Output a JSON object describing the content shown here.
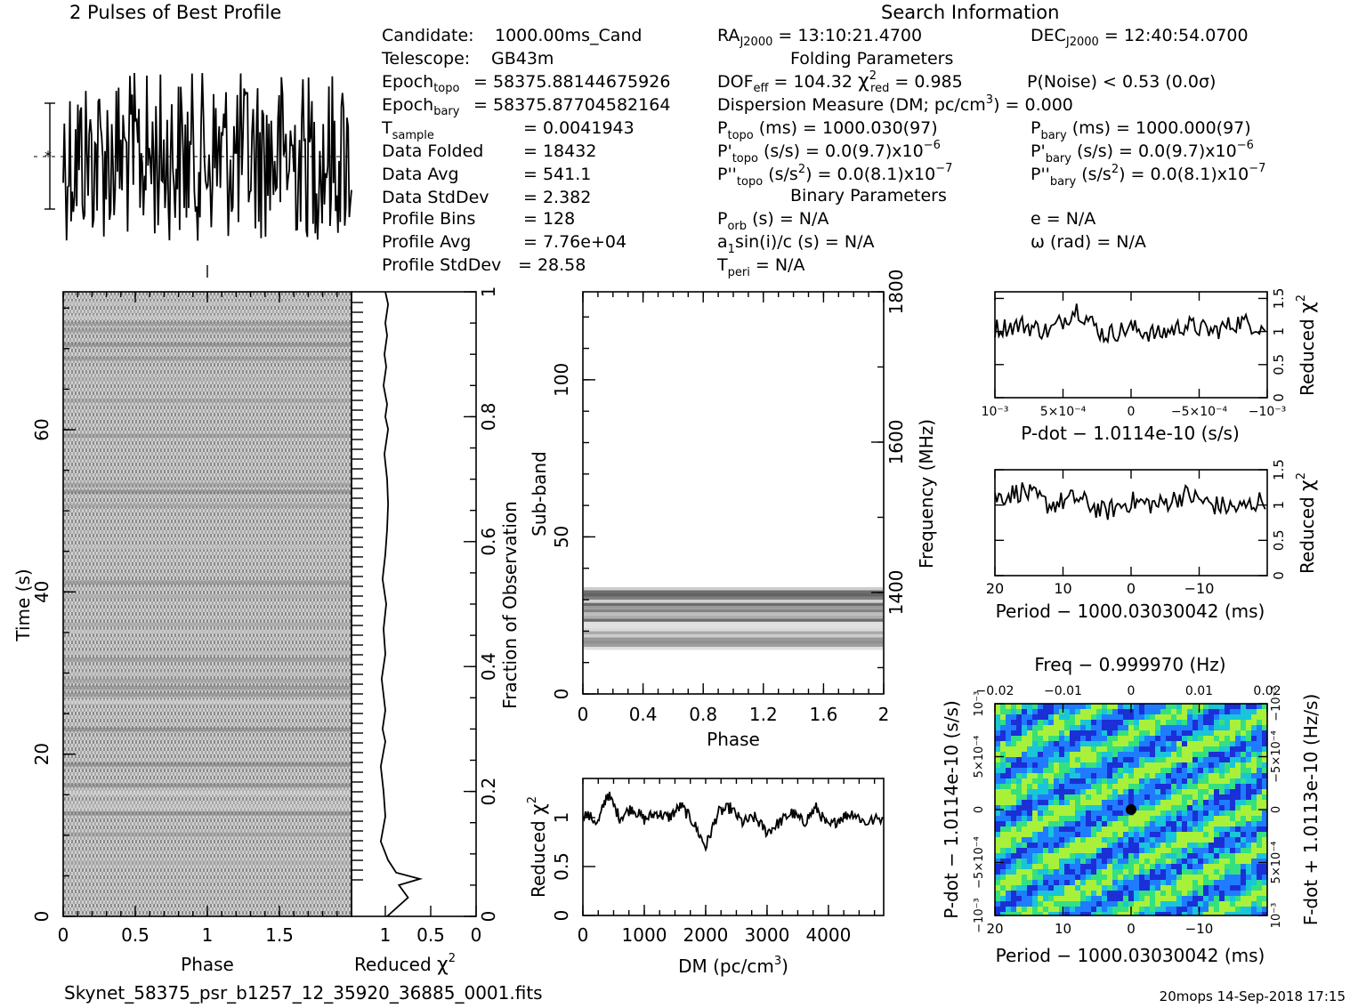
{
  "header": {
    "profile_title": "2 Pulses of Best Profile",
    "search_title": "Search Information",
    "folding_title": "Folding Parameters",
    "binary_title": "Binary Parameters",
    "filename": "Skynet_58375_psr_b1257_12_35920_36885_0001.fits",
    "footer_right": "20mops 14-Sep-2018 17:15"
  },
  "info_left": [
    {
      "label": "Candidate:",
      "value": "1000.00ms_Cand"
    },
    {
      "label": "Telescope:",
      "value": "GB43m"
    },
    {
      "label": "Epoch_topo",
      "value": "= 58375.88144675926"
    },
    {
      "label": "Epoch_bary",
      "value": "= 58375.87704582164"
    },
    {
      "label": "T_sample",
      "value": "=  0.0041943"
    },
    {
      "label": "Data Folded",
      "value": "=  18432"
    },
    {
      "label": "Data Avg",
      "value": "=  541.1"
    },
    {
      "label": "Data StdDev",
      "value": "=  2.382"
    },
    {
      "label": "Profile Bins",
      "value": "=  128"
    },
    {
      "label": "Profile Avg",
      "value": "=  7.76e+04"
    },
    {
      "label": "Profile StdDev",
      "value": "=  28.58"
    }
  ],
  "info_mid": {
    "ra": "RA_J2000 = 13:10:21.4700",
    "dof": "DOF_eff = 104.32  χ²_red = 0.985",
    "dm": "Dispersion Measure (DM; pc/cm³) = 0.000",
    "ptopo": "P_topo (ms) =  1000.030(97)",
    "pdtopo": "P'_topo (s/s) = 0.0(9.7)x10⁻⁶",
    "pddtopo": "P''_topo (s/s²) = 0.0(8.1)x10⁻⁷",
    "porb": "P_orb (s) = N/A",
    "a1": "a₁sin(i)/c (s) = N/A",
    "tperi": "T_peri = N/A"
  },
  "info_right": {
    "dec": "DEC_J2000 = 12:40:54.0700",
    "pnoise": "P(Noise) < 0.53  (0.0σ)",
    "pbary": "P_bary (ms) =  1000.000(97)",
    "pdbary": "P'_bary (s/s) = 0.0(9.7)x10⁻⁶",
    "pddbary": "P''_bary (s/s²) = 0.0(8.1)x10⁻⁷",
    "e": "e = N/A",
    "omega": "ω (rad) = N/A"
  },
  "chart_data": [
    {
      "id": "profile",
      "type": "line",
      "title": "2 Pulses of Best Profile",
      "x": "phase 0–2 (256 bins)",
      "xlim": [
        0,
        2
      ],
      "note": "noise-like profile, no clear pulse"
    },
    {
      "id": "time-phase",
      "type": "heatmap",
      "xlabel": "Phase",
      "ylabel": "Time (s)",
      "xticks": [
        "0",
        "0.5",
        "1",
        "1.5"
      ],
      "yticks": [
        "0",
        "20",
        "40",
        "60"
      ],
      "xlim": [
        0,
        2
      ],
      "ylim": [
        0,
        77
      ]
    },
    {
      "id": "time-chi2",
      "type": "line",
      "xlabel": "Reduced χ²",
      "ylabel": "Fraction of Observation",
      "xticks": [
        "1",
        "0.5",
        "0"
      ],
      "yticks": [
        "0",
        "0.2",
        "0.4",
        "0.6",
        "0.8",
        "1"
      ],
      "x": [
        0.98,
        0.75,
        0.85,
        0.62,
        0.88,
        0.97,
        1.05,
        1.0,
        1.02,
        1.05,
        1.0,
        1.03,
        1.0,
        1.04,
        1.0,
        1.02,
        0.99,
        1.03,
        1.0,
        0.98,
        0.97,
        0.98,
        1.01,
        0.97,
        1.0,
        0.98,
        1.02,
        0.99,
        1.01,
        0.98,
        1.0,
        0.97,
        1.0
      ],
      "y": [
        0.0,
        0.03,
        0.05,
        0.06,
        0.07,
        0.09,
        0.12,
        0.16,
        0.2,
        0.24,
        0.28,
        0.3,
        0.33,
        0.38,
        0.42,
        0.46,
        0.5,
        0.54,
        0.58,
        0.62,
        0.66,
        0.7,
        0.74,
        0.78,
        0.8,
        0.82,
        0.85,
        0.88,
        0.9,
        0.93,
        0.95,
        0.98,
        1.0
      ]
    },
    {
      "id": "subband-phase",
      "type": "heatmap",
      "xlabel": "Phase",
      "ylabel": "Sub-band",
      "y2label": "Frequency (MHz)",
      "xticks": [
        "0",
        "0.4",
        "0.8",
        "1.2",
        "1.6",
        "2"
      ],
      "yticks": [
        "0",
        "50",
        "100"
      ],
      "y2ticks": [
        "1400",
        "1600",
        "1800"
      ],
      "xlim": [
        0,
        2
      ],
      "ylim": [
        0,
        128
      ],
      "occupied_subbands": [
        14,
        33
      ]
    },
    {
      "id": "dm-chi2",
      "type": "line",
      "xlabel": "DM (pc/cm³)",
      "ylabel": "Reduced χ²",
      "xticks": [
        "0",
        "1000",
        "2000",
        "3000",
        "4000"
      ],
      "yticks": [
        "0",
        "0.5",
        "1"
      ],
      "xlim": [
        0,
        4900
      ],
      "ylim": [
        0,
        1.4
      ],
      "x": [
        0,
        250,
        400,
        600,
        800,
        1000,
        1200,
        1400,
        1600,
        1800,
        2000,
        2200,
        2400,
        2600,
        2800,
        3000,
        3200,
        3400,
        3600,
        3800,
        4000,
        4200,
        4400,
        4600,
        4900
      ],
      "y": [
        1.05,
        0.95,
        1.25,
        1.0,
        1.1,
        0.98,
        1.05,
        1.0,
        1.12,
        0.95,
        0.7,
        1.05,
        1.1,
        0.95,
        1.0,
        0.85,
        0.95,
        1.05,
        0.95,
        1.1,
        0.9,
        1.0,
        1.05,
        0.95,
        1.0
      ]
    },
    {
      "id": "pdot-chi2",
      "type": "line",
      "xlabel": "P-dot − 1.0114e-10 (s/s)",
      "ylabel": "Reduced χ²",
      "xticks": [
        "10⁻³",
        "5×10⁻⁴",
        "0",
        "−5×10⁻⁴",
        "−10⁻³"
      ],
      "yticks": [
        "0",
        "0.5",
        "1",
        "1.5"
      ],
      "ylim": [
        0,
        1.6
      ],
      "x": [
        0.001,
        0.0008,
        0.0006,
        0.0004,
        0.0002,
        0.0,
        -0.0002,
        -0.0004,
        -0.0006,
        -0.0008,
        -0.001
      ],
      "y": [
        1.05,
        1.1,
        1.0,
        1.35,
        0.95,
        1.05,
        0.95,
        1.1,
        1.0,
        1.15,
        1.05
      ]
    },
    {
      "id": "period-chi2",
      "type": "line",
      "xlabel": "Period − 1000.03030042 (ms)",
      "ylabel": "Reduced χ²",
      "xticks": [
        "20",
        "10",
        "0",
        "−10"
      ],
      "yticks": [
        "0",
        "0.5",
        "1",
        "1.5"
      ],
      "ylim": [
        0,
        1.5
      ],
      "x": [
        20,
        16,
        12,
        8,
        4,
        0,
        -4,
        -8,
        -12,
        -16,
        -20
      ],
      "y": [
        1.1,
        1.2,
        1.0,
        1.1,
        0.9,
        1.05,
        1.0,
        1.15,
        1.0,
        0.95,
        1.1
      ]
    },
    {
      "id": "p-pdot",
      "type": "heatmap",
      "title": "Freq − 0.999970 (Hz)",
      "xlabel": "Period − 1000.03030042 (ms)",
      "ylabel": "P-dot − 1.0114e-10 (s/s)",
      "y2label": "F-dot + 1.0113e-10 (Hz/s)",
      "xticks": [
        "20",
        "10",
        "0",
        "−10"
      ],
      "x2ticks": [
        "−0.02",
        "−0.01",
        "0",
        "0.01",
        "0.02"
      ],
      "yticks": [
        "10⁻³",
        "5×10⁻⁴",
        "0",
        "−5×10⁻⁴",
        "−10⁻³"
      ],
      "y2ticks": [
        "−10⁻³",
        "−5×10⁻⁴",
        "0",
        "5×10⁻⁴",
        "10⁻³"
      ],
      "best": [
        0,
        0
      ],
      "colors": [
        "#1b2fd6",
        "#1f7cff",
        "#19c5d8",
        "#35e07e",
        "#a9f03a"
      ]
    }
  ]
}
